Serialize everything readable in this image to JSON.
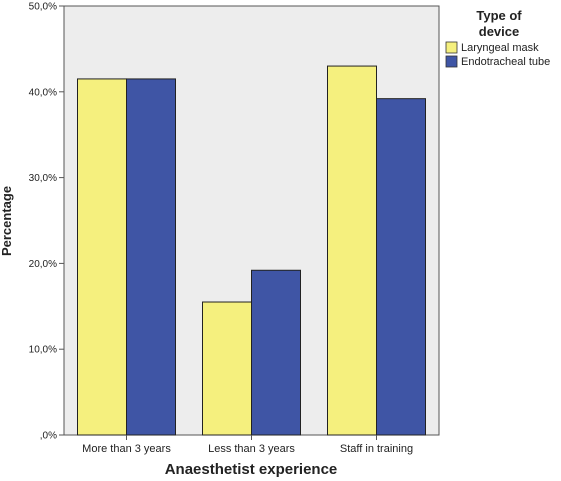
{
  "chart_data": {
    "type": "bar",
    "xlabel": "Anaesthetist experience",
    "ylabel": "Percentage",
    "categories": [
      "More than 3 years",
      "Less than 3 years",
      "Staff in training"
    ],
    "series": [
      {
        "name": "Laryngeal mask",
        "values": [
          41.5,
          15.5,
          43.0
        ],
        "color": "#f5f07e"
      },
      {
        "name": "Endotracheal tube",
        "values": [
          41.5,
          19.2,
          39.2
        ],
        "color": "#3f55a5"
      }
    ],
    "ylim": [
      0,
      50
    ],
    "yticks": [
      0,
      10,
      20,
      30,
      40,
      50
    ],
    "ytick_labels": [
      ",0%",
      "10,0%",
      "20,0%",
      "30,0%",
      "40,0%",
      "50,0%"
    ],
    "legend": {
      "title_lines": [
        "Type of",
        "device"
      ],
      "placement": "right"
    },
    "plot_background": "#ededed",
    "grid": false
  }
}
